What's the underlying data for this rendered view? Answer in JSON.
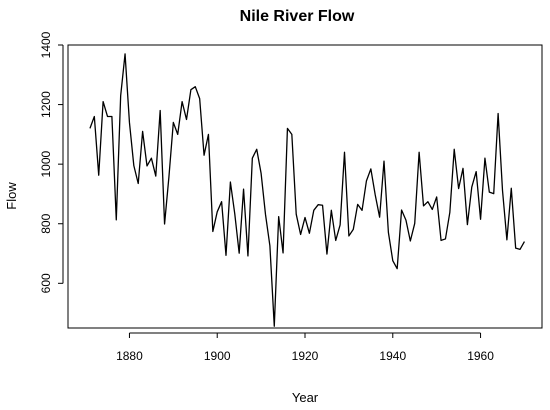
{
  "chart_data": {
    "type": "line",
    "title": "Nile River Flow",
    "xlabel": "Year",
    "ylabel": "Flow",
    "xlim": [
      1866,
      1974
    ],
    "ylim": [
      450,
      1400
    ],
    "xticks": [
      1880,
      1900,
      1920,
      1940,
      1960
    ],
    "yticks": [
      600,
      800,
      1000,
      1200,
      1400
    ],
    "grid": false,
    "series": [
      {
        "x": [
          1871,
          1872,
          1873,
          1874,
          1875,
          1876,
          1877,
          1878,
          1879,
          1880,
          1881,
          1882,
          1883,
          1884,
          1885,
          1886,
          1887,
          1888,
          1889,
          1890,
          1891,
          1892,
          1893,
          1894,
          1895,
          1896,
          1897,
          1898,
          1899,
          1900,
          1901,
          1902,
          1903,
          1904,
          1905,
          1906,
          1907,
          1908,
          1909,
          1910,
          1911,
          1912,
          1913,
          1914,
          1915,
          1916,
          1917,
          1918,
          1919,
          1920,
          1921,
          1922,
          1923,
          1924,
          1925,
          1926,
          1927,
          1928,
          1929,
          1930,
          1931,
          1932,
          1933,
          1934,
          1935,
          1936,
          1937,
          1938,
          1939,
          1940,
          1941,
          1942,
          1943,
          1944,
          1945,
          1946,
          1947,
          1948,
          1949,
          1950,
          1951,
          1952,
          1953,
          1954,
          1955,
          1956,
          1957,
          1958,
          1959,
          1960,
          1961,
          1962,
          1963,
          1964,
          1965,
          1966,
          1967,
          1968,
          1969,
          1970
        ],
        "values": [
          1120,
          1160,
          963,
          1210,
          1160,
          1160,
          813,
          1230,
          1370,
          1140,
          995,
          935,
          1110,
          994,
          1020,
          960,
          1180,
          799,
          958,
          1140,
          1100,
          1210,
          1150,
          1250,
          1260,
          1220,
          1030,
          1100,
          774,
          840,
          874,
          694,
          940,
          833,
          701,
          916,
          692,
          1020,
          1050,
          969,
          831,
          726,
          456,
          824,
          702,
          1120,
          1100,
          832,
          764,
          821,
          768,
          845,
          864,
          862,
          698,
          845,
          744,
          796,
          1040,
          759,
          781,
          865,
          845,
          944,
          984,
          897,
          822,
          1010,
          771,
          676,
          649,
          846,
          812,
          742,
          801,
          1040,
          860,
          874,
          848,
          890,
          744,
          749,
          838,
          1050,
          918,
          986,
          797,
          923,
          975,
          815,
          1020,
          906,
          901,
          1170,
          912,
          746,
          919,
          718,
          714,
          740
        ]
      }
    ]
  }
}
